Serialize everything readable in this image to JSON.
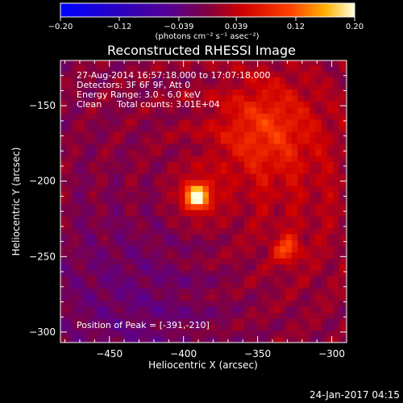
{
  "chart_data": {
    "type": "heatmap",
    "title": "Reconstructed RHESSI Image",
    "xlabel": "Heliocentric X (arcsec)",
    "ylabel": "Heliocentric Y (arcsec)",
    "xlim": [
      -483,
      -290
    ],
    "ylim": [
      -307,
      -120
    ],
    "x_ticks": [
      -450,
      -400,
      -350,
      -300
    ],
    "y_ticks": [
      -150,
      -200,
      -250,
      -300
    ],
    "x_tick_labels": [
      "−450",
      "−400",
      "−350",
      "−300"
    ],
    "y_tick_labels": [
      "−150",
      "−200",
      "−250",
      "−300"
    ],
    "colorbar": {
      "range": [
        -0.2,
        0.2
      ],
      "tick_values": [
        -0.2,
        -0.12,
        -0.039,
        0.039,
        0.12,
        0.2
      ],
      "tick_labels": [
        "−0.20",
        "−0.12",
        "−0.039",
        "0.039",
        "0.12",
        "0.20"
      ],
      "unit_label": "(photons cm⁻² s⁻¹ asec⁻²)"
    },
    "sources": [
      {
        "x": -391,
        "y": -210,
        "peak": 0.2,
        "sigma": 7
      },
      {
        "x": -330,
        "y": -245,
        "peak": 0.09,
        "sigma": 6
      },
      {
        "x": -345,
        "y": -165,
        "peak": 0.07,
        "sigma": 22
      }
    ],
    "annotations": {
      "time_range": "27-Aug-2014 16:57:18.000 to 17:07:18.000",
      "detectors": "Detectors: 3F 6F 9F, Att 0",
      "energy": "Energy Range: 3.0 - 6.0 keV",
      "clean": "Clean",
      "total_counts": "Total counts: 3.01E+04",
      "peak_position": "Position of Peak = [-391,-210]"
    }
  },
  "footer": {
    "timestamp": "24-Jan-2017 04:15"
  }
}
